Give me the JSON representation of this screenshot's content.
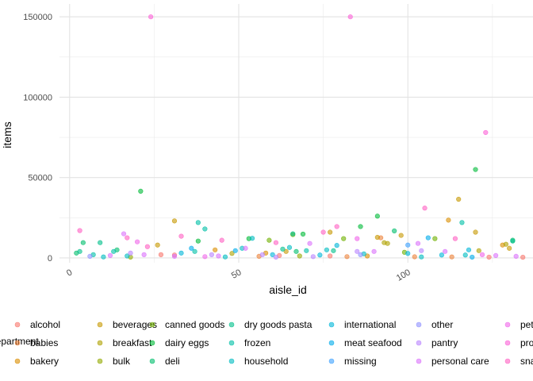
{
  "chart_data": {
    "type": "scatter",
    "xlabel": "aisle_id",
    "ylabel": "items",
    "xlim": [
      -3,
      137
    ],
    "ylim": [
      -3000,
      158000
    ],
    "x_ticks": [
      0,
      50,
      100
    ],
    "x_tick_labels": [
      "0",
      "50",
      "100"
    ],
    "y_ticks": [
      0,
      50000,
      100000,
      150000
    ],
    "y_tick_labels": [
      "0",
      "50000",
      "100000",
      "150000"
    ],
    "grid": true,
    "legend_position": "bottom",
    "legend_title": "department",
    "series": [
      {
        "name": "alcohol",
        "color": "#F8766D",
        "points": [
          [
            27,
            2000
          ],
          [
            31,
            1800
          ],
          [
            62,
            1500
          ],
          [
            77,
            1200
          ],
          [
            124,
            500
          ],
          [
            134,
            400
          ]
        ]
      },
      {
        "name": "babies",
        "color": "#EC8239",
        "points": [
          [
            56,
            1000
          ],
          [
            82,
            800
          ],
          [
            92,
            12500
          ],
          [
            102,
            700
          ],
          [
            113,
            600
          ]
        ]
      },
      {
        "name": "bakery",
        "color": "#DB8E00",
        "points": [
          [
            43,
            5000
          ],
          [
            58,
            3000
          ],
          [
            88,
            1200
          ],
          [
            112,
            23500
          ],
          [
            128,
            8000
          ]
        ]
      },
      {
        "name": "beverages",
        "color": "#C79800",
        "points": [
          [
            26,
            8000
          ],
          [
            31,
            23000
          ],
          [
            64,
            4000
          ],
          [
            77,
            16000
          ],
          [
            91,
            12800
          ],
          [
            98,
            14000
          ],
          [
            115,
            36500
          ],
          [
            120,
            16000
          ],
          [
            130,
            6000
          ]
        ]
      },
      {
        "name": "breakfast",
        "color": "#AFA100",
        "points": [
          [
            48,
            2800
          ],
          [
            93,
            9500
          ],
          [
            94,
            9000
          ],
          [
            121,
            4500
          ],
          [
            129,
            8500
          ]
        ]
      },
      {
        "name": "bulk",
        "color": "#93AA00",
        "points": [
          [
            18,
            500
          ],
          [
            68,
            1200
          ]
        ]
      },
      {
        "name": "canned goods",
        "color": "#6FB000",
        "points": [
          [
            59,
            11000
          ],
          [
            66,
            14500
          ],
          [
            81,
            12000
          ],
          [
            99,
            3500
          ],
          [
            108,
            12000
          ]
        ]
      },
      {
        "name": "dairy eggs",
        "color": "#00BA38",
        "points": [
          [
            21,
            41500
          ],
          [
            38,
            10500
          ],
          [
            53,
            12000
          ],
          [
            69,
            14800
          ],
          [
            86,
            19500
          ],
          [
            91,
            26000
          ],
          [
            120,
            55000
          ]
        ]
      },
      {
        "name": "deli",
        "color": "#00BE6C",
        "points": [
          [
            2,
            3000
          ],
          [
            4,
            9500
          ],
          [
            14,
            5000
          ],
          [
            67,
            4000
          ],
          [
            96,
            16800
          ],
          [
            131,
            11000
          ]
        ]
      },
      {
        "name": "dry goods pasta",
        "color": "#00C08B",
        "points": [
          [
            3,
            4000
          ],
          [
            9,
            9500
          ],
          [
            63,
            5500
          ],
          [
            66,
            15000
          ],
          [
            78,
            4500
          ],
          [
            131,
            10500
          ]
        ]
      },
      {
        "name": "frozen",
        "color": "#00C0A7",
        "points": [
          [
            7,
            2000
          ],
          [
            13,
            4000
          ],
          [
            37,
            4000
          ],
          [
            38,
            22000
          ],
          [
            40,
            18000
          ],
          [
            70,
            4500
          ],
          [
            116,
            22000
          ]
        ]
      },
      {
        "name": "household",
        "color": "#00BCC1",
        "points": [
          [
            10,
            600
          ],
          [
            17,
            1200
          ],
          [
            46,
            600
          ],
          [
            51,
            6000
          ],
          [
            54,
            12200
          ],
          [
            65,
            6500
          ],
          [
            76,
            5000
          ],
          [
            87,
            2500
          ],
          [
            104,
            600
          ],
          [
            117,
            1800
          ]
        ]
      },
      {
        "name": "international",
        "color": "#00B6D8",
        "points": [
          [
            33,
            3000
          ],
          [
            60,
            2000
          ],
          [
            74,
            1800
          ],
          [
            79,
            7800
          ],
          [
            100,
            2800
          ],
          [
            110,
            1800
          ],
          [
            118,
            5000
          ]
        ]
      },
      {
        "name": "meat seafood",
        "color": "#00ACEB",
        "points": [
          [
            36,
            6000
          ],
          [
            49,
            4500
          ],
          [
            106,
            12500
          ],
          [
            119,
            500
          ]
        ]
      },
      {
        "name": "missing",
        "color": "#3DA1FF",
        "points": [
          [
            100,
            8000
          ]
        ]
      },
      {
        "name": "other",
        "color": "#8F91FF",
        "points": [
          [
            6,
            1000
          ],
          [
            86,
            2000
          ]
        ]
      },
      {
        "name": "pantry",
        "color": "#B983FF",
        "points": [
          [
            18,
            3000
          ],
          [
            42,
            2000
          ],
          [
            57,
            2000
          ],
          [
            61,
            500
          ],
          [
            72,
            800
          ],
          [
            85,
            4000
          ],
          [
            104,
            4500
          ]
        ]
      },
      {
        "name": "personal care",
        "color": "#DB72FB",
        "points": [
          [
            12,
            1500
          ],
          [
            16,
            15000
          ],
          [
            22,
            2000
          ],
          [
            31,
            1000
          ],
          [
            44,
            1200
          ],
          [
            52,
            6000
          ],
          [
            71,
            9000
          ],
          [
            90,
            4000
          ],
          [
            103,
            9000
          ],
          [
            111,
            4000
          ],
          [
            126,
            1500
          ],
          [
            132,
            1000
          ]
        ]
      },
      {
        "name": "pets",
        "color": "#F066EA",
        "points": [
          [
            20,
            10000
          ],
          [
            40,
            800
          ],
          [
            85,
            12000
          ],
          [
            122,
            2000
          ]
        ]
      },
      {
        "name": "produce",
        "color": "#FB61D7",
        "points": [
          [
            24,
            150000
          ],
          [
            83,
            150000
          ],
          [
            123,
            78000
          ]
        ]
      },
      {
        "name": "snacks",
        "color": "#FF61C3",
        "points": [
          [
            3,
            17000
          ],
          [
            17,
            12500
          ],
          [
            23,
            7000
          ],
          [
            33,
            13500
          ],
          [
            45,
            11000
          ],
          [
            61,
            9500
          ],
          [
            75,
            16000
          ],
          [
            79,
            19500
          ],
          [
            105,
            31000
          ],
          [
            114,
            12000
          ]
        ]
      }
    ]
  }
}
